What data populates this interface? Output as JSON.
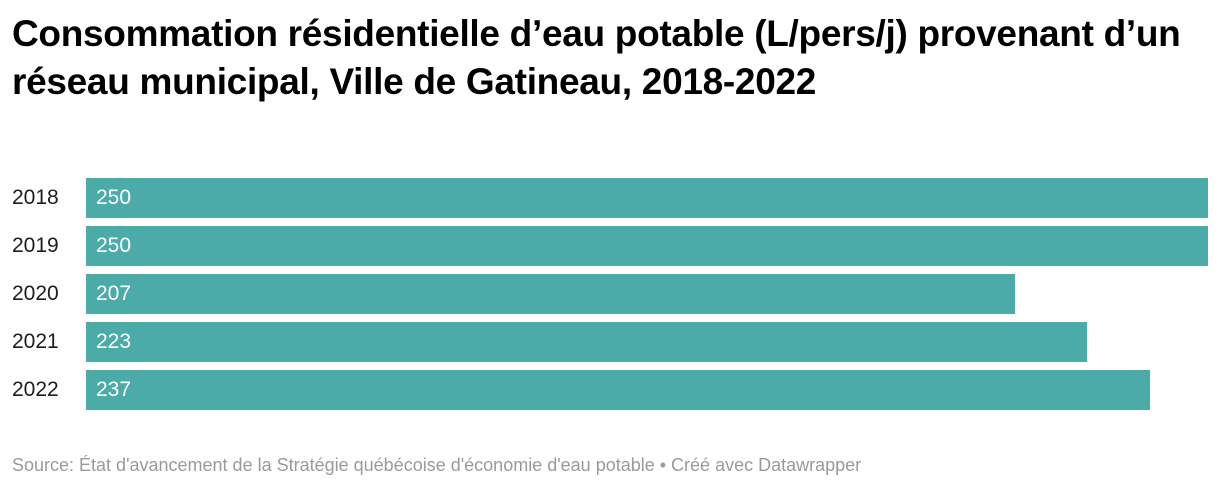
{
  "chart_data": {
    "type": "bar",
    "orientation": "horizontal",
    "title": "Consommation résidentielle d’eau potable (L/pers/j) provenant d’un réseau municipal, Ville de Gatineau, 2018-2022",
    "categories": [
      "2018",
      "2019",
      "2020",
      "2021",
      "2022"
    ],
    "values": [
      250,
      250,
      207,
      223,
      237
    ],
    "xlim": [
      0,
      250
    ],
    "grid": false,
    "legend": "none",
    "bar_color": "#4aaba8"
  },
  "footer": {
    "source": "Source: État d'avancement de la Stratégie québécoise d'économie d'eau potable • Créé avec Datawrapper"
  }
}
